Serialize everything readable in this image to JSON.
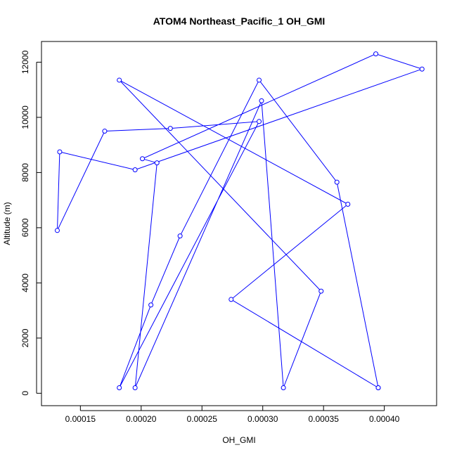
{
  "chart_data": {
    "type": "line",
    "title": "ATOM4 Northeast_Pacific_1 OH_GMI",
    "xlabel": "OH_GMI",
    "ylabel": "Altitude (m)",
    "xlim": [
      0.000118,
      0.000443
    ],
    "ylim": [
      -450,
      12750
    ],
    "x_ticks": [
      {
        "value": 0.00015,
        "label": "0.00015"
      },
      {
        "value": 0.0002,
        "label": "0.00020"
      },
      {
        "value": 0.00025,
        "label": "0.00025"
      },
      {
        "value": 0.0003,
        "label": "0.00030"
      },
      {
        "value": 0.00035,
        "label": "0.00035"
      },
      {
        "value": 0.0004,
        "label": "0.00040"
      }
    ],
    "y_ticks": [
      {
        "value": 0,
        "label": "0"
      },
      {
        "value": 2000,
        "label": "2000"
      },
      {
        "value": 4000,
        "label": "4000"
      },
      {
        "value": 6000,
        "label": "6000"
      },
      {
        "value": 8000,
        "label": "8000"
      },
      {
        "value": 10000,
        "label": "10000"
      },
      {
        "value": 12000,
        "label": "12000"
      }
    ],
    "grid": false,
    "marker": "open-circle",
    "series": [
      {
        "color": "#0000ff",
        "x": [
          0.000395,
          0.000274,
          0.00037,
          0.000182,
          0.000348,
          0.000317,
          0.000299,
          0.000195,
          0.000213,
          0.000201,
          0.000393,
          0.000431,
          0.000195,
          0.000133,
          0.000131,
          0.00017,
          0.000224,
          0.000297,
          0.000182,
          0.000208,
          0.000232,
          0.000297,
          0.000361,
          0.000395
        ],
        "y": [
          200,
          3400,
          6850,
          11350,
          3700,
          200,
          10600,
          200,
          8350,
          8500,
          12300,
          11750,
          8100,
          8750,
          5900,
          9500,
          9600,
          9850,
          200,
          3200,
          5700,
          11350,
          7650,
          200
        ]
      }
    ]
  }
}
